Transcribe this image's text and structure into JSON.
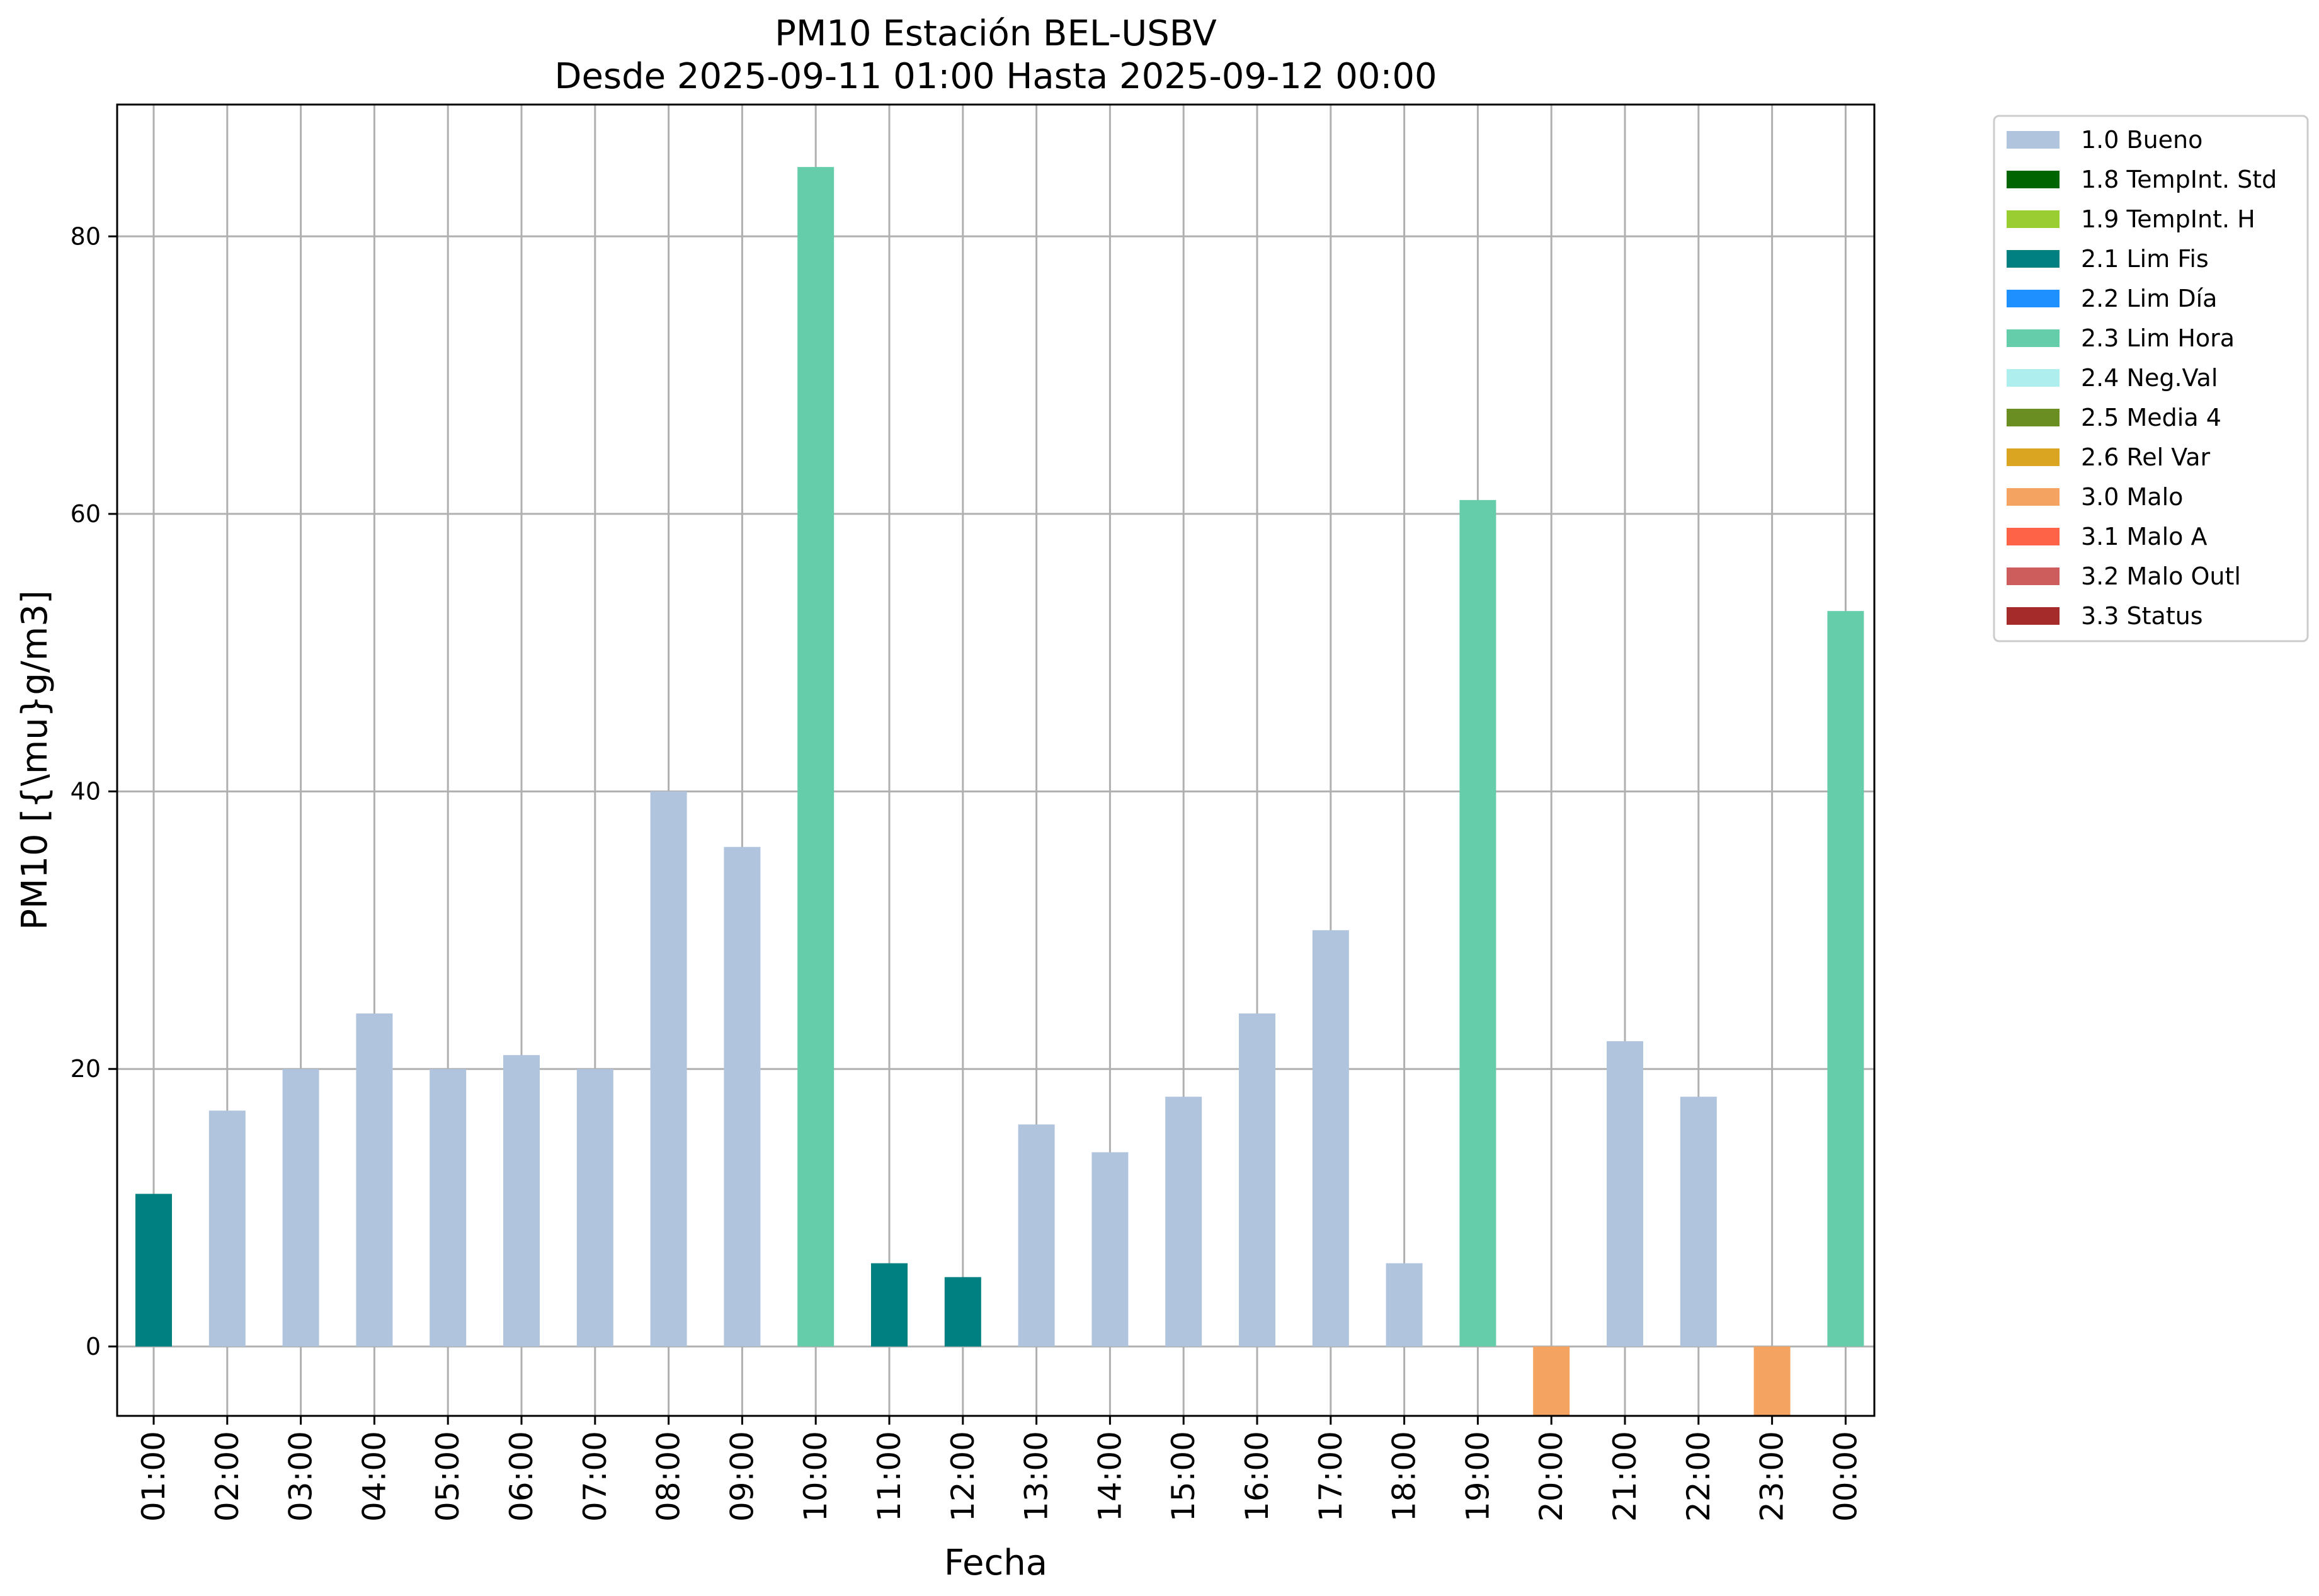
{
  "chart_data": {
    "type": "bar",
    "title": "PM10 Estación BEL-USBV",
    "subtitle": "Desde 2025-09-11 01:00 Hasta 2025-09-12 00:00",
    "xlabel": "Fecha",
    "ylabel": "PM10 [{\\mu}g/m3]",
    "ylim": [
      -5,
      89.5
    ],
    "yticks": [
      0,
      20,
      40,
      60,
      80
    ],
    "grid": true,
    "legend_position": "outside-top-right",
    "categories": [
      "01:00",
      "02:00",
      "03:00",
      "04:00",
      "05:00",
      "06:00",
      "07:00",
      "08:00",
      "09:00",
      "10:00",
      "11:00",
      "12:00",
      "13:00",
      "14:00",
      "15:00",
      "16:00",
      "17:00",
      "18:00",
      "19:00",
      "20:00",
      "21:00",
      "22:00",
      "23:00",
      "00:00"
    ],
    "values": [
      11,
      17,
      20,
      24,
      20,
      21,
      20,
      40,
      36,
      85,
      6,
      5,
      16,
      14,
      18,
      24,
      30,
      6,
      61,
      -5,
      22,
      18,
      -5,
      53
    ],
    "flags": [
      "2.1",
      "1.0",
      "1.0",
      "1.0",
      "1.0",
      "1.0",
      "1.0",
      "1.0",
      "1.0",
      "2.3",
      "2.1",
      "2.1",
      "1.0",
      "1.0",
      "1.0",
      "1.0",
      "1.0",
      "1.0",
      "2.3",
      "3.0",
      "1.0",
      "1.0",
      "3.0",
      "2.3"
    ],
    "legend": [
      {
        "code": "1.0",
        "label": "1.0 Bueno",
        "color": "#b0c4de"
      },
      {
        "code": "1.8",
        "label": "1.8 TempInt. Std",
        "color": "#006400"
      },
      {
        "code": "1.9",
        "label": "1.9 TempInt. H",
        "color": "#9acd32"
      },
      {
        "code": "2.1",
        "label": "2.1 Lim Fis",
        "color": "#008080"
      },
      {
        "code": "2.2",
        "label": "2.2 Lim Día",
        "color": "#1e90ff"
      },
      {
        "code": "2.3",
        "label": "2.3 Lim Hora",
        "color": "#66cdaa"
      },
      {
        "code": "2.4",
        "label": "2.4 Neg.Val",
        "color": "#afeeee"
      },
      {
        "code": "2.5",
        "label": "2.5 Media 4",
        "color": "#6b8e23"
      },
      {
        "code": "2.6",
        "label": "2.6 Rel Var",
        "color": "#daa520"
      },
      {
        "code": "3.0",
        "label": "3.0 Malo",
        "color": "#f4a460"
      },
      {
        "code": "3.1",
        "label": "3.1 Malo A",
        "color": "#ff6347"
      },
      {
        "code": "3.2",
        "label": "3.2 Malo Outl",
        "color": "#cd5c5c"
      },
      {
        "code": "3.3",
        "label": "3.3 Status",
        "color": "#a52a2a"
      }
    ]
  }
}
